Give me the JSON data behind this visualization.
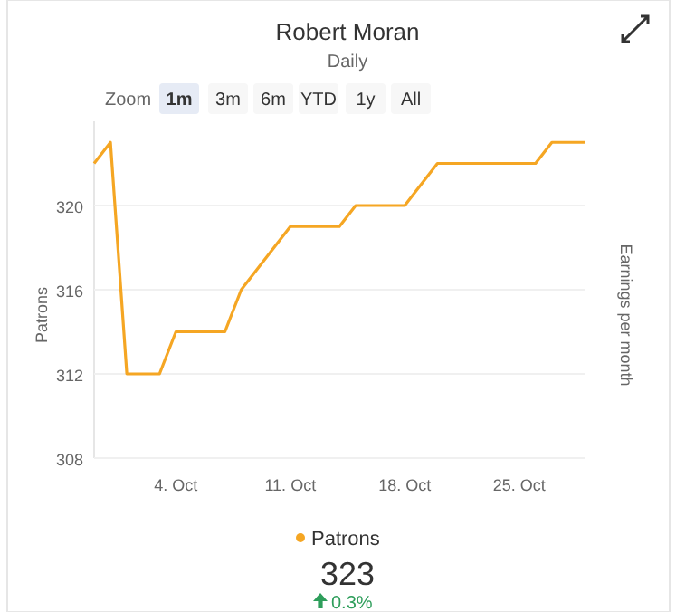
{
  "chart_data": {
    "type": "line",
    "title": "Robert Moran",
    "subtitle": "Daily",
    "ylabel": "Patrons",
    "y2label": "Earnings per month",
    "x": [
      "--09-29",
      "--09-30",
      "--10-01",
      "--10-02",
      "--10-03",
      "--10-04",
      "--10-05",
      "--10-06",
      "--10-07",
      "--10-08",
      "--10-09",
      "--10-10",
      "--10-11",
      "--10-12",
      "--10-13",
      "--10-14",
      "--10-15",
      "--10-16",
      "--10-17",
      "--10-18",
      "--10-19",
      "--10-20",
      "--10-21",
      "--10-22",
      "--10-23",
      "--10-24",
      "--10-25",
      "--10-26",
      "--10-27",
      "--10-28",
      "--10-29"
    ],
    "series": [
      {
        "name": "Patrons",
        "color": "#f5a623",
        "values": [
          322,
          323,
          312,
          312,
          312,
          314,
          314,
          314,
          314,
          316,
          317,
          318,
          319,
          319,
          319,
          319,
          320,
          320,
          320,
          320,
          321,
          322,
          322,
          322,
          322,
          322,
          322,
          322,
          323,
          323,
          323
        ]
      }
    ],
    "xlim": [
      "--09-29",
      "--10-29"
    ],
    "xticks": [
      {
        "value": "--10-04",
        "label": "4. Oct"
      },
      {
        "value": "--10-11",
        "label": "11. Oct"
      },
      {
        "value": "--10-18",
        "label": "18. Oct"
      },
      {
        "value": "--10-25",
        "label": "25. Oct"
      }
    ],
    "ylim": [
      308,
      324
    ],
    "yticks": [
      308,
      312,
      316,
      320
    ],
    "grid": "y",
    "legend": "bottom",
    "annotations": [
      "Zoom",
      "1m",
      "3m",
      "6m",
      "YTD",
      "1y",
      "All",
      "323",
      "0.3%"
    ]
  }
}
